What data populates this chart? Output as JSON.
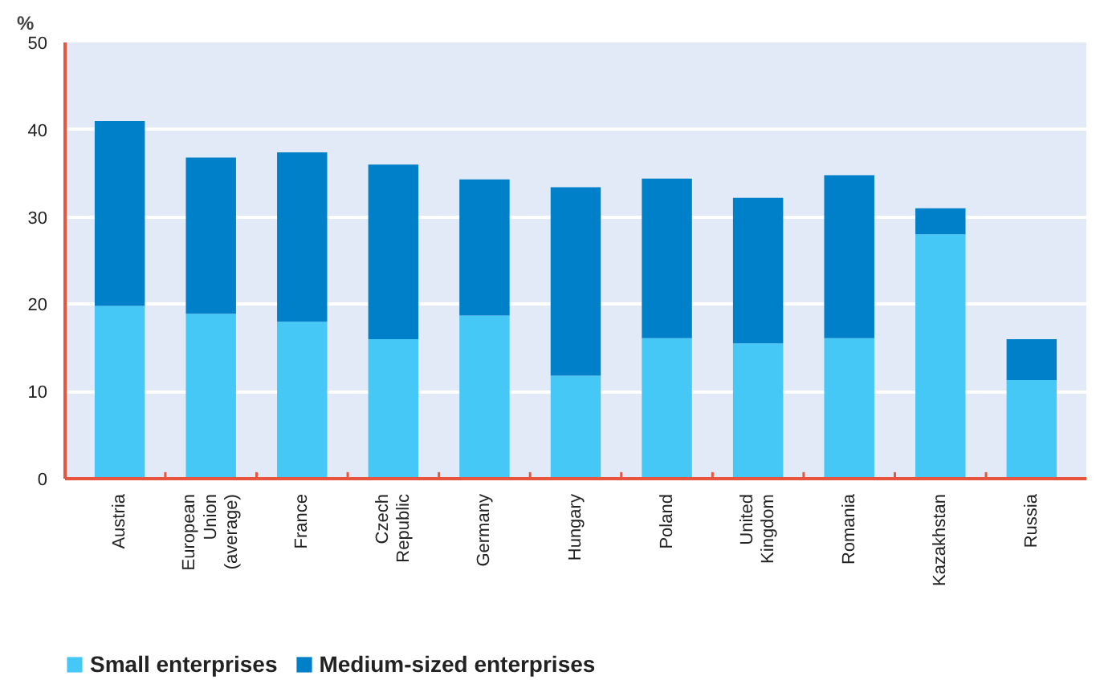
{
  "chart_data": {
    "type": "bar",
    "stacked": true,
    "ylabel": "%",
    "categories": [
      "Austria",
      "European\nUnion\n(average)",
      "France",
      "Czech\nRepublic",
      "Germany",
      "Hungary",
      "Poland",
      "United\nKingdom",
      "Romania",
      "Kazakhstan",
      "Russia"
    ],
    "series": [
      {
        "name": "Small enterprises",
        "color": "#45c8f5",
        "values": [
          19.8,
          18.9,
          18.0,
          16.0,
          18.7,
          11.8,
          16.1,
          15.5,
          16.1,
          28.0,
          11.3
        ]
      },
      {
        "name": "Medium-sized enterprises",
        "color": "#0080c8",
        "values": [
          21.2,
          17.9,
          19.4,
          20.0,
          15.6,
          21.6,
          18.3,
          16.7,
          18.7,
          3.0,
          4.7
        ]
      }
    ],
    "ylim": [
      0,
      50
    ],
    "yticks": [
      0,
      10,
      20,
      30,
      40,
      50
    ],
    "grid": "y",
    "legend": "bottom left"
  }
}
